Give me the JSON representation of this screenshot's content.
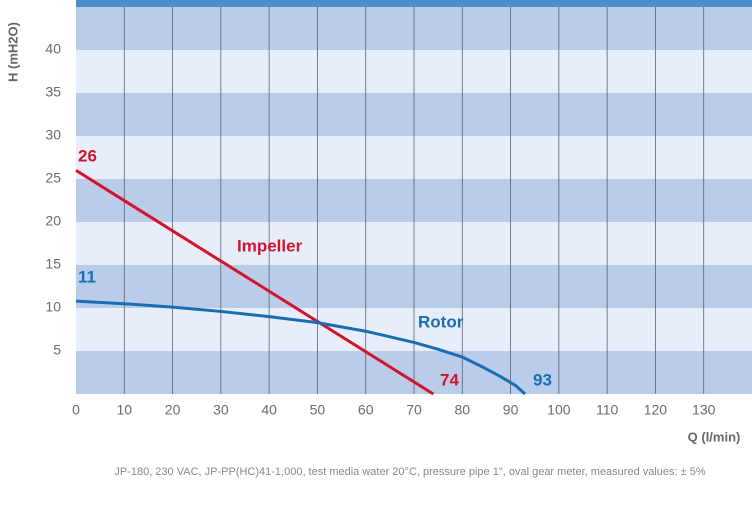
{
  "chart_data": {
    "type": "line",
    "ylabel": "H (mH2O)",
    "xlabel": "Q (l/min)",
    "footnote": "JP-180, 230 VAC, JP-PP(HC)41-1,000, test media water 20°C, pressure pipe 1\", oval gear meter, measured values: ± 5%",
    "xlim": [
      0,
      140
    ],
    "xticks": [
      0,
      10,
      20,
      30,
      40,
      50,
      60,
      70,
      80,
      90,
      100,
      110,
      120,
      130
    ],
    "ylim": [
      0,
      45
    ],
    "yticks": [
      5,
      10,
      15,
      20,
      25,
      30,
      35,
      40
    ],
    "grid": true,
    "band_colors": [
      "#b9cdea",
      "#e7eef9"
    ],
    "series": [
      {
        "name": "Impeller",
        "color": "#d3132b",
        "x": [
          0,
          74
        ],
        "values": [
          26,
          0
        ]
      },
      {
        "name": "Rotor",
        "color": "#1a6db3",
        "x": [
          0,
          10,
          20,
          30,
          40,
          50,
          60,
          70,
          75,
          80,
          84,
          88,
          91,
          93
        ],
        "values": [
          10.8,
          10.5,
          10.1,
          9.6,
          9,
          8.3,
          7.3,
          6,
          5.2,
          4.3,
          3.2,
          2,
          1,
          0
        ]
      }
    ],
    "annotations": [
      "26",
      "11",
      "74",
      "93"
    ]
  }
}
